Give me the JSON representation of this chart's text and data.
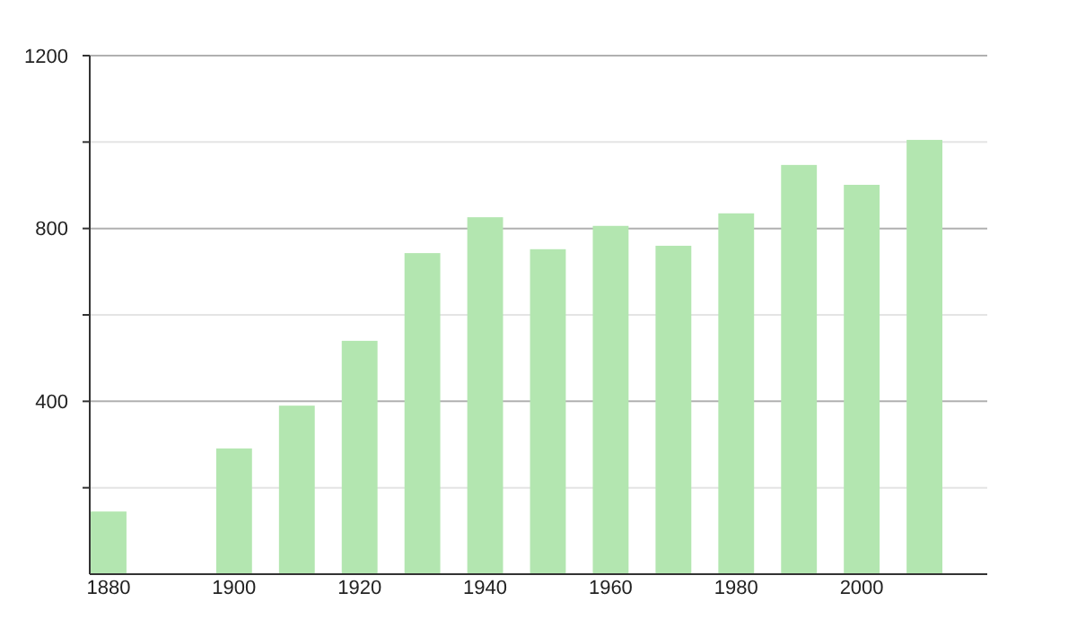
{
  "chart_data": {
    "type": "bar",
    "x": [
      1880,
      1900,
      1910,
      1920,
      1930,
      1940,
      1950,
      1960,
      1970,
      1980,
      1990,
      2000,
      2010
    ],
    "values": [
      145,
      291,
      390,
      540,
      743,
      826,
      752,
      806,
      760,
      835,
      947,
      901,
      1005
    ],
    "color": "#b3e6b0",
    "xlim": [
      1877,
      2020
    ],
    "xticks": [
      1880,
      1900,
      1920,
      1940,
      1960,
      1980,
      2000
    ],
    "ylim": [
      0,
      1200
    ],
    "yticks": [
      {
        "value": 200,
        "label": null
      },
      400,
      {
        "value": 600,
        "label": null
      },
      800,
      {
        "value": 1000,
        "label": null
      },
      1200
    ],
    "grid": "y"
  }
}
